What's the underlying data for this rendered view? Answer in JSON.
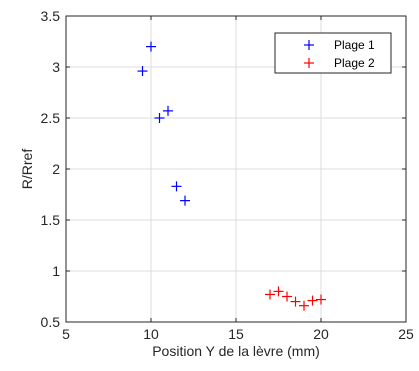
{
  "chart_data": {
    "type": "scatter",
    "title": "",
    "xlabel": "Position Y de la lèvre (mm)",
    "ylabel": "R/Rref",
    "xlim": [
      5,
      25
    ],
    "ylim": [
      0.5,
      3.5
    ],
    "xticks": [
      5,
      10,
      15,
      20,
      25
    ],
    "yticks": [
      0.5,
      1,
      1.5,
      2,
      2.5,
      3,
      3.5
    ],
    "xtick_labels": [
      "5",
      "10",
      "15",
      "20",
      "25"
    ],
    "ytick_labels": [
      "0.5",
      "1",
      "1.5",
      "2",
      "2.5",
      "3",
      "3.5"
    ],
    "grid": true,
    "legend_position": "top-right",
    "marker": "+",
    "series": [
      {
        "name": "Plage 1",
        "color": "#0000ff",
        "x": [
          9.5,
          10.0,
          10.5,
          11.0,
          11.5,
          12.0
        ],
        "y": [
          2.96,
          3.2,
          2.5,
          2.57,
          1.83,
          1.69
        ]
      },
      {
        "name": "Plage 2",
        "color": "#ff0000",
        "x": [
          17.0,
          17.5,
          18.0,
          18.5,
          19.0,
          19.5,
          20.0
        ],
        "y": [
          0.77,
          0.8,
          0.75,
          0.7,
          0.66,
          0.71,
          0.72
        ]
      }
    ]
  }
}
